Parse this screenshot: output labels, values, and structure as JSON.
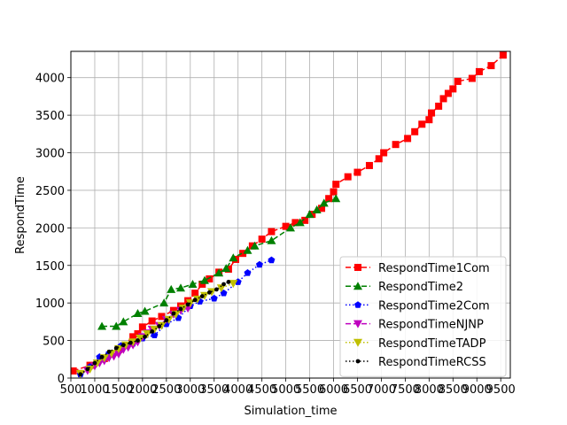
{
  "chart_data": {
    "type": "line",
    "title": "",
    "xlabel": "Simulation_time",
    "ylabel": "RespondTime",
    "xlim": [
      500,
      9700
    ],
    "ylim": [
      0,
      4350
    ],
    "grid": true,
    "legend_position": "lower-right",
    "x_ticks": [
      "500",
      "1000",
      "1500",
      "2000",
      "2500",
      "3000",
      "3500",
      "4000",
      "4500",
      "5000",
      "5500",
      "6000",
      "6500",
      "7000",
      "7500",
      "8000",
      "8500",
      "9000",
      "9500"
    ],
    "x_tick_values": [
      500,
      1000,
      1500,
      2000,
      2500,
      3000,
      3500,
      4000,
      4500,
      5000,
      5500,
      6000,
      6500,
      7000,
      7500,
      8000,
      8500,
      9000,
      9500
    ],
    "y_ticks": [
      "0",
      "500",
      "1000",
      "1500",
      "2000",
      "2500",
      "3000",
      "3500",
      "4000"
    ],
    "y_tick_values": [
      0,
      500,
      1000,
      1500,
      2000,
      2500,
      3000,
      3500,
      4000
    ],
    "series": [
      {
        "name": "RespondTime1Com",
        "color": "#ff0000",
        "marker": "square",
        "linestyle": "dashed",
        "x": [
          550,
          900,
          1200,
          1500,
          1800,
          1900,
          2000,
          2200,
          2400,
          2650,
          2800,
          2950,
          3100,
          3250,
          3400,
          3600,
          3800,
          3950,
          4100,
          4300,
          4500,
          4700,
          5000,
          5200,
          5400,
          5550,
          5750,
          5900,
          6000,
          6050,
          6300,
          6500,
          6750,
          6950,
          7050,
          7300,
          7550,
          7700,
          7850,
          8000,
          8050,
          8200,
          8300,
          8400,
          8500,
          8600,
          8900,
          9050,
          9300,
          9550
        ],
        "y": [
          95,
          170,
          260,
          380,
          550,
          590,
          680,
          760,
          820,
          900,
          960,
          1030,
          1130,
          1250,
          1320,
          1410,
          1450,
          1580,
          1660,
          1760,
          1850,
          1950,
          2020,
          2070,
          2100,
          2180,
          2260,
          2390,
          2480,
          2580,
          2680,
          2740,
          2830,
          2920,
          3000,
          3110,
          3190,
          3280,
          3380,
          3440,
          3530,
          3620,
          3720,
          3790,
          3850,
          3950,
          3990,
          4080,
          4160,
          4300
        ]
      },
      {
        "name": "RespondTime2",
        "color": "#008000",
        "marker": "triangle-up",
        "linestyle": "dashed",
        "x": [
          1150,
          1450,
          1600,
          1900,
          2050,
          2450,
          2600,
          2800,
          3050,
          3300,
          3600,
          3750,
          3900,
          4200,
          4350,
          4700,
          5100,
          5300,
          5500,
          5650,
          5800,
          6050
        ],
        "y": [
          690,
          690,
          750,
          860,
          890,
          1000,
          1180,
          1200,
          1250,
          1300,
          1400,
          1460,
          1600,
          1700,
          1760,
          1830,
          2000,
          2070,
          2180,
          2240,
          2330,
          2390
        ]
      },
      {
        "name": "RespondTime2Com",
        "color": "#0000ff",
        "marker": "pentagon",
        "linestyle": "dotted",
        "x": [
          700,
          900,
          1100,
          1300,
          1550,
          1800,
          2000,
          2250,
          2500,
          2750,
          3000,
          3200,
          3500,
          3700,
          4000,
          4200,
          4450,
          4700
        ],
        "y": [
          50,
          150,
          280,
          330,
          430,
          460,
          530,
          570,
          720,
          800,
          960,
          1020,
          1060,
          1130,
          1280,
          1400,
          1510,
          1570
        ]
      },
      {
        "name": "RespondTimeNJNP",
        "color": "#bf00bf",
        "marker": "triangle-down",
        "linestyle": "dashed",
        "x": [
          700,
          850,
          1000,
          1100,
          1200,
          1300,
          1400,
          1500,
          1600,
          1700,
          1800,
          1900,
          2000,
          2100,
          2200,
          2350,
          2500,
          2650,
          2800,
          2950
        ],
        "y": [
          60,
          100,
          160,
          200,
          230,
          270,
          290,
          320,
          380,
          410,
          440,
          480,
          550,
          600,
          650,
          700,
          780,
          850,
          900,
          930
        ]
      },
      {
        "name": "RespondTimeTADP",
        "color": "#bfbf00",
        "marker": "triangle-down",
        "linestyle": "dotted",
        "x": [
          700,
          900,
          1050,
          1200,
          1350,
          1500,
          1650,
          1800,
          1950,
          2100,
          2250,
          2400,
          2550,
          2700,
          2850,
          3000,
          3150,
          3300,
          3450,
          3650,
          3900
        ],
        "y": [
          60,
          120,
          200,
          270,
          330,
          390,
          440,
          480,
          530,
          590,
          650,
          700,
          780,
          850,
          930,
          1000,
          1050,
          1100,
          1150,
          1200,
          1260
        ]
      },
      {
        "name": "RespondTimeRCSS",
        "color": "#000000",
        "marker": "circle",
        "linestyle": "dotted",
        "x": [
          700,
          850,
          1000,
          1150,
          1300,
          1450,
          1600,
          1750,
          1900,
          2050,
          2200,
          2350,
          2500,
          2650,
          2800,
          2950,
          3100,
          3250,
          3400,
          3550,
          3700,
          3800
        ],
        "y": [
          50,
          120,
          200,
          280,
          350,
          400,
          440,
          470,
          500,
          550,
          620,
          690,
          770,
          860,
          920,
          980,
          1040,
          1090,
          1140,
          1180,
          1250,
          1280
        ]
      }
    ]
  }
}
